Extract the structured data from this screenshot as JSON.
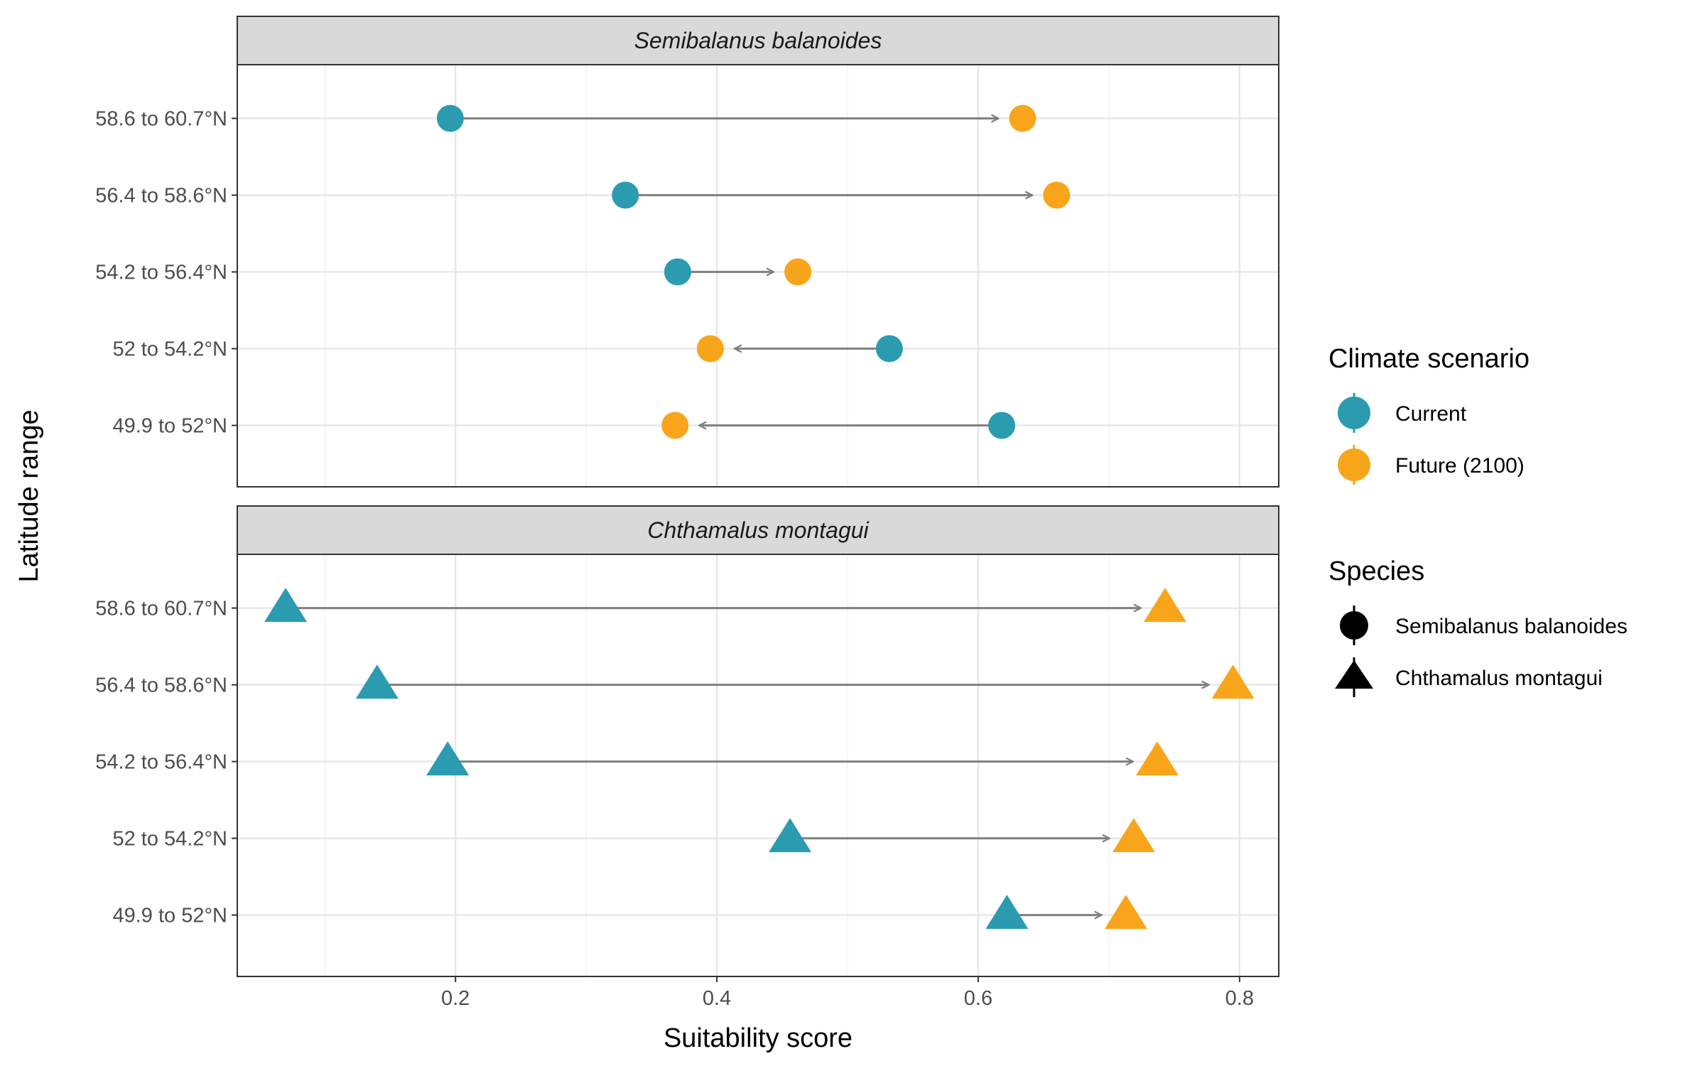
{
  "chart_data": {
    "type": "dumbbell",
    "xlabel": "Suitability score",
    "ylabel": "Latitude range",
    "xlim": [
      0.033,
      0.83
    ],
    "x_ticks": [
      0.2,
      0.4,
      0.6,
      0.8
    ],
    "x_tick_labels": [
      "0.2",
      "0.4",
      "0.6",
      "0.8"
    ],
    "grid": true,
    "categories": [
      "58.6 to 60.7°N",
      "56.4 to 58.6°N",
      "54.2 to 56.4°N",
      "52 to 54.2°N",
      "49.9 to 52°N"
    ],
    "colors": {
      "current": "#2b9bb0",
      "future": "#f8a51b",
      "arrow": "#7f7f7f"
    },
    "panels": [
      {
        "title": "Semibalanus balanoides",
        "shape": "circle",
        "current": [
          0.196,
          0.33,
          0.37,
          0.532,
          0.618
        ],
        "future": [
          0.634,
          0.66,
          0.462,
          0.395,
          0.368
        ]
      },
      {
        "title": "Chthamalus montagui",
        "shape": "triangle",
        "current": [
          0.07,
          0.14,
          0.194,
          0.456,
          0.622
        ],
        "future": [
          0.743,
          0.795,
          0.737,
          0.719,
          0.713
        ]
      }
    ],
    "legend": {
      "position": "right",
      "scenario_title": "Climate scenario",
      "scenario_items": [
        {
          "label": "Current",
          "color": "#2b9bb0"
        },
        {
          "label": "Future (2100)",
          "color": "#f8a51b"
        }
      ],
      "species_title": "Species",
      "species_items": [
        {
          "label": "Semibalanus balanoides",
          "shape": "circle"
        },
        {
          "label": "Chthamalus montagui",
          "shape": "triangle"
        }
      ]
    }
  }
}
